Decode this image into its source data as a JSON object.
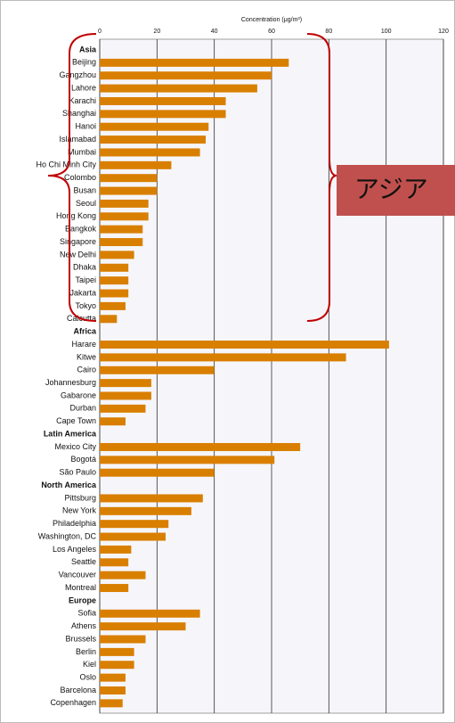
{
  "chart_data": {
    "type": "bar",
    "orientation": "horizontal",
    "axis_label": "Concentration (μg/m³)",
    "xlim": [
      0,
      120
    ],
    "xticks": [
      0,
      20,
      40,
      60,
      80,
      100,
      120
    ],
    "grid": true,
    "color": "#d97f00",
    "groups": [
      {
        "name": "Asia",
        "categories": [
          "Beijing",
          "Gangzhou",
          "Lahore",
          "Karachi",
          "Shanghai",
          "Hanoi",
          "Islamabad",
          "Mumbai",
          "Ho Chi Minh City",
          "Colombo",
          "Busan",
          "Seoul",
          "Hong Kong",
          "Bangkok",
          "Singapore",
          "New Delhi",
          "Dhaka",
          "Taipei",
          "Jakarta",
          "Tokyo",
          "Calcutta"
        ],
        "values": [
          66,
          60,
          55,
          44,
          44,
          38,
          37,
          35,
          25,
          20,
          20,
          17,
          17,
          15,
          15,
          12,
          10,
          10,
          10,
          9,
          6
        ]
      },
      {
        "name": "Africa",
        "categories": [
          "Harare",
          "Kitwe",
          "Cairo",
          "Johannesburg",
          "Gabarone",
          "Durban",
          "Cape Town"
        ],
        "values": [
          101,
          86,
          40,
          18,
          18,
          16,
          9
        ]
      },
      {
        "name": "Latin America",
        "categories": [
          "Mexico City",
          "Bogotá",
          "São Paulo"
        ],
        "values": [
          70,
          61,
          40
        ]
      },
      {
        "name": "North America",
        "categories": [
          "Pittsburg",
          "New York",
          "Philadelphia",
          "Washington, DC",
          "Los Angeles",
          "Seattle",
          "Vancouver",
          "Montreal"
        ],
        "values": [
          36,
          32,
          24,
          23,
          11,
          10,
          16,
          10
        ]
      },
      {
        "name": "Europe",
        "categories": [
          "Sofia",
          "Athens",
          "Brussels",
          "Berlin",
          "Kiel",
          "Oslo",
          "Barcelona",
          "Copenhagen"
        ],
        "values": [
          35,
          30,
          16,
          12,
          12,
          9,
          9,
          8
        ]
      }
    ],
    "annotation": "アジア"
  }
}
